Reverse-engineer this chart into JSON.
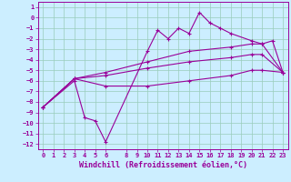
{
  "xlabel": "Windchill (Refroidissement éolien,°C)",
  "bg_color": "#cceeff",
  "grid_color": "#99ccbb",
  "line_color": "#990099",
  "xlim": [
    -0.5,
    23.5
  ],
  "ylim": [
    -12.5,
    1.5
  ],
  "xticks": [
    0,
    1,
    2,
    3,
    4,
    5,
    6,
    8,
    9,
    10,
    11,
    12,
    13,
    14,
    15,
    16,
    17,
    18,
    19,
    20,
    21,
    22,
    23
  ],
  "yticks": [
    1,
    0,
    -1,
    -2,
    -3,
    -4,
    -5,
    -6,
    -7,
    -8,
    -9,
    -10,
    -11,
    -12
  ],
  "line1_x": [
    0,
    3,
    4,
    5,
    6,
    10,
    11,
    12,
    13,
    14,
    15,
    16,
    17,
    18,
    20,
    21,
    22,
    23
  ],
  "line1_y": [
    -8.5,
    -6.0,
    -9.5,
    -9.8,
    -11.8,
    -3.2,
    -1.2,
    -2.0,
    -1.0,
    -1.5,
    0.5,
    -0.5,
    -1.0,
    -1.5,
    -2.2,
    -2.5,
    -2.2,
    -5.2
  ],
  "line2_x": [
    0,
    3,
    6,
    10,
    14,
    18,
    20,
    21,
    23
  ],
  "line2_y": [
    -8.5,
    -5.8,
    -5.2,
    -4.2,
    -3.2,
    -2.8,
    -2.5,
    -2.5,
    -5.2
  ],
  "line3_x": [
    0,
    3,
    6,
    10,
    14,
    18,
    20,
    21,
    23
  ],
  "line3_y": [
    -8.5,
    -5.8,
    -5.5,
    -4.8,
    -4.2,
    -3.8,
    -3.5,
    -3.5,
    -5.2
  ],
  "line4_x": [
    0,
    3,
    6,
    10,
    14,
    18,
    20,
    21,
    23
  ],
  "line4_y": [
    -8.5,
    -5.8,
    -6.5,
    -6.5,
    -6.0,
    -5.5,
    -5.0,
    -5.0,
    -5.2
  ],
  "marker": "+",
  "marker_size": 3,
  "line_width": 0.8,
  "xlabel_fontsize": 6,
  "tick_fontsize": 5
}
